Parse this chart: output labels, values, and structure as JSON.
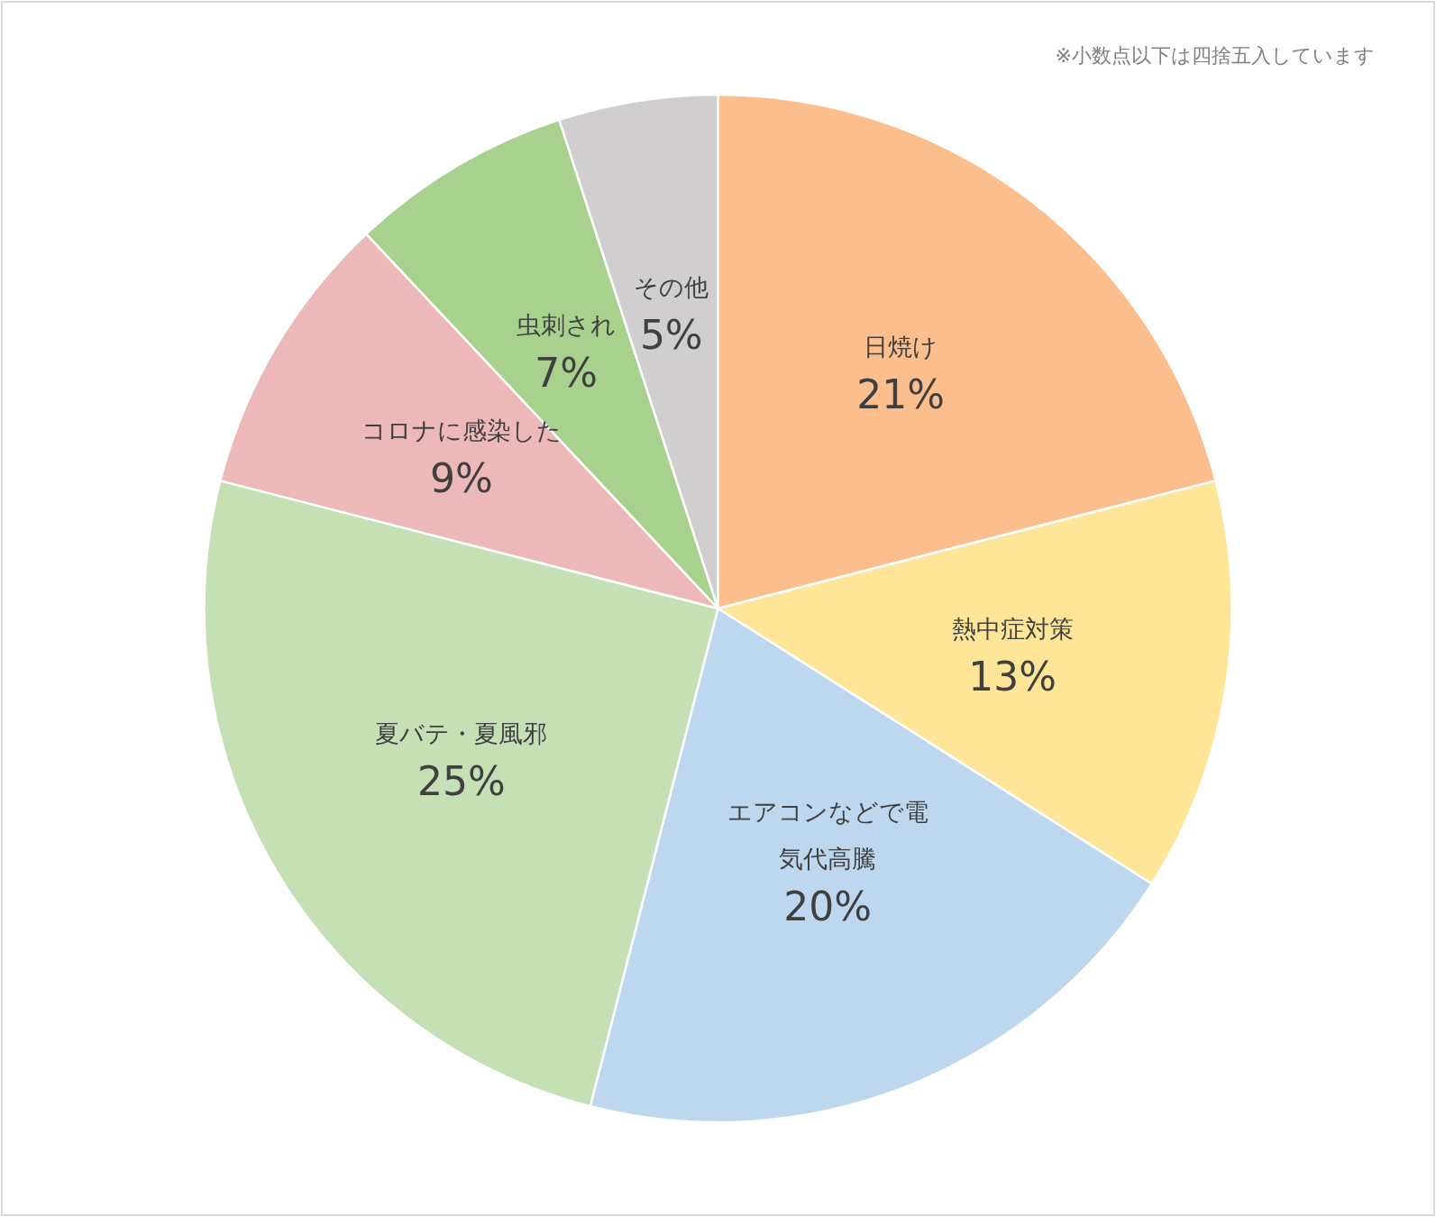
{
  "chart_data": {
    "type": "pie",
    "categories": [
      "日焼け",
      "熱中症対策",
      "エアコンなどで電気代高騰",
      "夏バテ・夏風邪",
      "コロナに感染した",
      "虫刺され",
      "その他"
    ],
    "values": [
      21,
      13,
      20,
      25,
      9,
      7,
      5
    ],
    "value_labels": [
      "21%",
      "13%",
      "20%",
      "25%",
      "9%",
      "7%",
      "5%"
    ],
    "colors": [
      "#fdbe8e",
      "#fee598",
      "#bdd7ee",
      "#c5e0b4",
      "#ecb8b8",
      "#a9d18e",
      "#d0cece"
    ],
    "annotations": [
      "※小数点以下は四捨五入しています"
    ]
  }
}
